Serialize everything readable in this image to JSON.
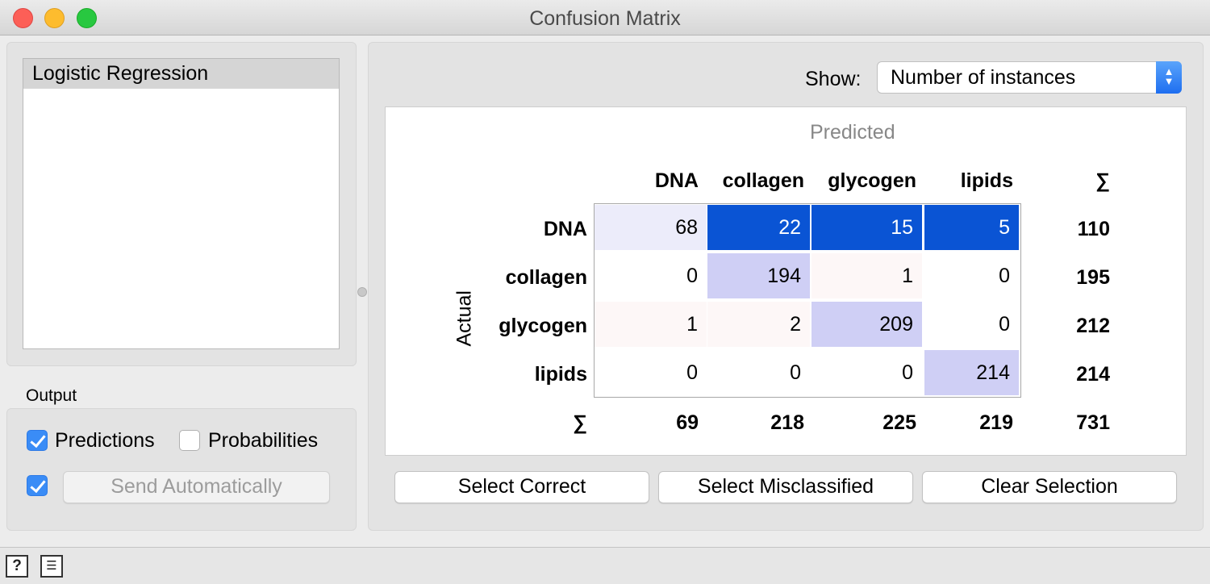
{
  "window": {
    "title": "Confusion Matrix"
  },
  "learners": {
    "items": [
      "Logistic Regression"
    ]
  },
  "output": {
    "label": "Output",
    "predictions_label": "Predictions",
    "predictions_checked": true,
    "probabilities_label": "Probabilities",
    "probabilities_checked": false,
    "auto_send_checked": true,
    "send_button": "Send Automatically"
  },
  "show": {
    "label": "Show:",
    "value": "Number of instances"
  },
  "matrix": {
    "predicted_label": "Predicted",
    "actual_label": "Actual",
    "classes": [
      "DNA",
      "collagen",
      "glycogen",
      "lipids"
    ],
    "sum_symbol": "∑",
    "cells": [
      [
        "68",
        "22",
        "15",
        "5"
      ],
      [
        "0",
        "194",
        "1",
        "0"
      ],
      [
        "1",
        "2",
        "209",
        "0"
      ],
      [
        "0",
        "0",
        "0",
        "214"
      ]
    ],
    "row_sums": [
      "110",
      "195",
      "212",
      "214"
    ],
    "col_sums": [
      "69",
      "218",
      "225",
      "219"
    ],
    "total": "731",
    "colors": {
      "dark": "#0a54d4",
      "light_blue": "#cfcff5",
      "pale": "#ececfa",
      "pink": "#fdf7f7"
    }
  },
  "buttons": {
    "select_correct": "Select Correct",
    "select_misclassified": "Select Misclassified",
    "clear_selection": "Clear Selection"
  },
  "status": {
    "help_icon": "?",
    "report_icon": "☰"
  }
}
